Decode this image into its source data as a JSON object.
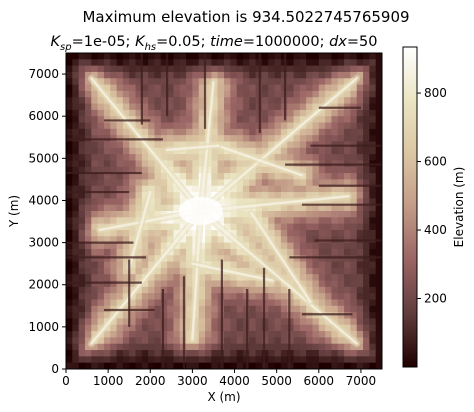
{
  "chart_data": {
    "type": "heatmap",
    "title": "Maximum elevation is 934.5022745765909",
    "subtitle": {
      "ksp_base": "K",
      "ksp_sub": "sp",
      "ksp_val": "=1e-05; ",
      "khs_base": "K",
      "khs_sub": "hs",
      "khs_val": "=0.05; ",
      "time_name": "time",
      "time_val": "=1000000; ",
      "dx_name": "dx",
      "dx_val": "=50"
    },
    "xlabel": "X (m)",
    "ylabel": "Y (m)",
    "xlim": [
      0,
      7500
    ],
    "ylim": [
      0,
      7500
    ],
    "x_ticks": [
      0,
      1000,
      2000,
      3000,
      4000,
      5000,
      6000,
      7000
    ],
    "y_ticks": [
      0,
      1000,
      2000,
      3000,
      4000,
      5000,
      6000,
      7000
    ],
    "colorbar": {
      "label": "Elevation (m)",
      "range": [
        0,
        934.5022745765909
      ],
      "ticks": [
        200,
        400,
        600,
        800
      ],
      "colormap": "pink"
    },
    "peak_location": [
      3200,
      3750
    ],
    "grid": false
  },
  "colormap_stops": [
    "#1e0000",
    "#603c3c",
    "#9a6464",
    "#c29b86",
    "#dbc6a3",
    "#ebe5c2",
    "#ffffff"
  ]
}
